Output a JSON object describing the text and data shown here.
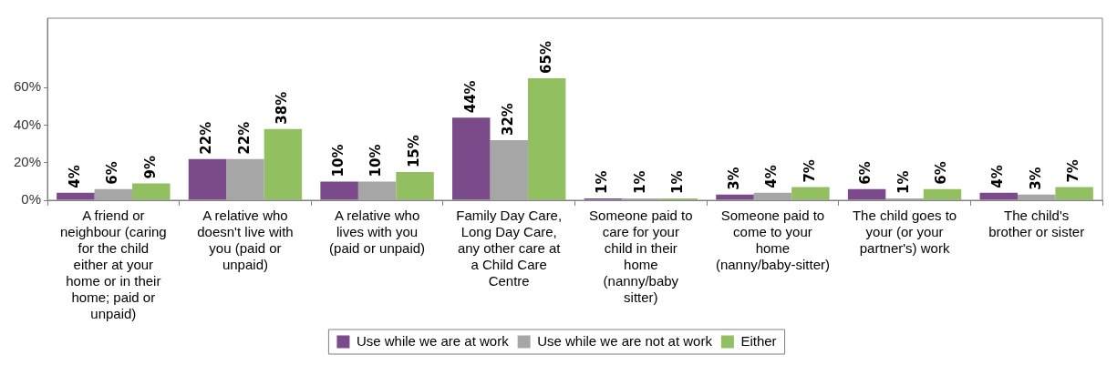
{
  "chart_data": {
    "type": "bar",
    "categories": [
      "A friend or neighbour (caring for the child either at your home or in their home; paid or unpaid)",
      "A relative who doesn't live with you (paid or unpaid)",
      "A relative who lives with you (paid or unpaid)",
      "Family Day Care, Long Day Care, any other care at a Child Care Centre",
      "Someone paid to care for your child in their home (nanny/baby sitter)",
      "Someone paid to come to your home (nanny/baby-sitter)",
      "The child goes to your (or your partner's) work",
      "The child's brother or sister"
    ],
    "series": [
      {
        "name": "Use while we are at work",
        "color": "#7b4a8a",
        "values": [
          4,
          22,
          10,
          44,
          1,
          3,
          6,
          4
        ],
        "value_labels": [
          "4%",
          "22%",
          "10%",
          "44%",
          "1%",
          "3%",
          "6%",
          "4%"
        ]
      },
      {
        "name": "Use while we are not at work",
        "color": "#a6a6a6",
        "values": [
          6,
          22,
          10,
          32,
          1,
          4,
          1,
          3
        ],
        "value_labels": [
          "6%",
          "22%",
          "10%",
          "32%",
          "1%",
          "4%",
          "1%",
          "3%"
        ]
      },
      {
        "name": "Either",
        "color": "#92c060",
        "values": [
          9,
          38,
          15,
          65,
          1,
          7,
          6,
          7
        ],
        "value_labels": [
          "9%",
          "38%",
          "15%",
          "65%",
          "1%",
          "7%",
          "6%",
          "7%"
        ]
      }
    ],
    "ylim": [
      0,
      97
    ],
    "yticks": [
      {
        "value": 0,
        "label": "0%"
      },
      {
        "value": 20,
        "label": "20%"
      },
      {
        "value": 40,
        "label": "40%"
      },
      {
        "value": 60,
        "label": "60%"
      }
    ],
    "grid": false,
    "legend": "bottom"
  }
}
